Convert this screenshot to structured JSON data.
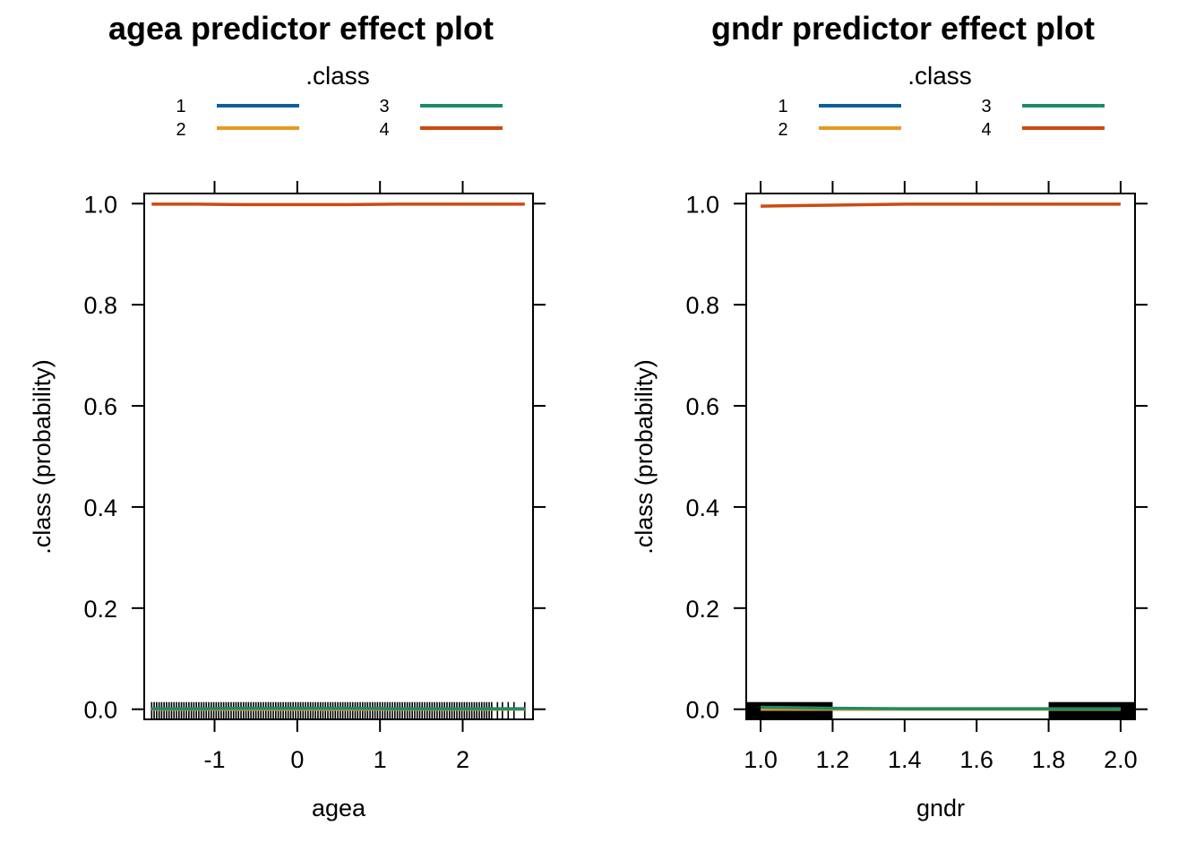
{
  "colors": {
    "class_1": "#0d5e9e",
    "class_2": "#e69a1f",
    "class_3": "#1f8a6a",
    "class_4": "#cc4a10",
    "axis": "#000000",
    "background": "#ffffff"
  },
  "chart_data": [
    {
      "type": "line",
      "title": "agea predictor effect plot",
      "legend_title": ".class",
      "legend_placement": "top",
      "xlabel": "agea",
      "ylabel": ".class (probability)",
      "xlim": [
        -1.85,
        2.85
      ],
      "ylim": [
        -0.02,
        1.02
      ],
      "x_ticks": [
        -1,
        0,
        1,
        2
      ],
      "x_tick_labels": [
        "-1",
        "0",
        "1",
        "2"
      ],
      "y_ticks": [
        0,
        0.2,
        0.4,
        0.6,
        0.8,
        1
      ],
      "y_tick_labels": [
        "0.0",
        "0.2",
        "0.4",
        "0.6",
        "0.8",
        "1.0"
      ],
      "grid": false,
      "rug": {
        "side": "bottom",
        "x": [
          -1.76,
          -1.73,
          -1.7,
          -1.67,
          -1.64,
          -1.61,
          -1.58,
          -1.55,
          -1.52,
          -1.49,
          -1.46,
          -1.43,
          -1.4,
          -1.37,
          -1.34,
          -1.31,
          -1.28,
          -1.25,
          -1.22,
          -1.19,
          -1.16,
          -1.13,
          -1.1,
          -1.07,
          -1.04,
          -1.01,
          -0.98,
          -0.95,
          -0.92,
          -0.89,
          -0.86,
          -0.83,
          -0.8,
          -0.77,
          -0.74,
          -0.71,
          -0.68,
          -0.65,
          -0.62,
          -0.59,
          -0.56,
          -0.53,
          -0.5,
          -0.47,
          -0.44,
          -0.41,
          -0.38,
          -0.35,
          -0.32,
          -0.29,
          -0.26,
          -0.23,
          -0.2,
          -0.17,
          -0.14,
          -0.11,
          -0.08,
          -0.05,
          -0.02,
          0.01,
          0.04,
          0.07,
          0.1,
          0.13,
          0.16,
          0.19,
          0.22,
          0.25,
          0.28,
          0.31,
          0.34,
          0.37,
          0.4,
          0.43,
          0.46,
          0.49,
          0.52,
          0.55,
          0.58,
          0.61,
          0.64,
          0.67,
          0.7,
          0.73,
          0.76,
          0.79,
          0.82,
          0.85,
          0.88,
          0.91,
          0.94,
          0.97,
          1.0,
          1.03,
          1.06,
          1.09,
          1.12,
          1.15,
          1.18,
          1.21,
          1.24,
          1.27,
          1.3,
          1.33,
          1.36,
          1.39,
          1.42,
          1.45,
          1.48,
          1.51,
          1.54,
          1.57,
          1.6,
          1.63,
          1.66,
          1.69,
          1.72,
          1.75,
          1.78,
          1.81,
          1.84,
          1.87,
          1.9,
          1.93,
          1.96,
          1.99,
          2.02,
          2.05,
          2.08,
          2.11,
          2.14,
          2.17,
          2.2,
          2.23,
          2.26,
          2.29,
          2.32,
          2.35,
          2.42,
          2.48,
          2.55,
          2.62,
          2.75
        ]
      },
      "x": [
        -1.76,
        -1.2,
        -0.6,
        0,
        0.6,
        1.2,
        1.8,
        2.4,
        2.75
      ],
      "series": [
        {
          "name": "1",
          "color_key": "class_1",
          "values": [
            0,
            0,
            0,
            0,
            0,
            0,
            0,
            0,
            0
          ]
        },
        {
          "name": "2",
          "color_key": "class_2",
          "values": [
            0,
            0,
            0,
            0,
            0,
            0,
            0,
            0,
            0
          ]
        },
        {
          "name": "3",
          "color_key": "class_3",
          "values": [
            0.001,
            0.001,
            0.002,
            0.002,
            0.002,
            0.001,
            0.001,
            0.001,
            0.001
          ]
        },
        {
          "name": "4",
          "color_key": "class_4",
          "values": [
            0.999,
            0.999,
            0.998,
            0.998,
            0.998,
            0.999,
            0.999,
            0.999,
            0.999
          ]
        }
      ]
    },
    {
      "type": "line",
      "title": "gndr predictor effect plot",
      "legend_title": ".class",
      "legend_placement": "top",
      "xlabel": "gndr",
      "ylabel": ".class (probability)",
      "xlim": [
        0.96,
        2.04
      ],
      "ylim": [
        -0.02,
        1.02
      ],
      "x_ticks": [
        1.0,
        1.2,
        1.4,
        1.6,
        1.8,
        2.0
      ],
      "x_tick_labels": [
        "1.0",
        "1.2",
        "1.4",
        "1.6",
        "1.8",
        "2.0"
      ],
      "y_ticks": [
        0,
        0.2,
        0.4,
        0.6,
        0.8,
        1
      ],
      "y_tick_labels": [
        "0.0",
        "0.2",
        "0.4",
        "0.6",
        "0.8",
        "1.0"
      ],
      "grid": false,
      "rug_blocks": [
        {
          "from": 0.96,
          "to": 1.2
        },
        {
          "from": 1.8,
          "to": 2.04
        }
      ],
      "x": [
        1.0,
        1.2,
        1.4,
        1.6,
        1.8,
        2.0
      ],
      "series": [
        {
          "name": "1",
          "color_key": "class_1",
          "values": [
            0,
            0,
            0,
            0,
            0,
            0
          ]
        },
        {
          "name": "2",
          "color_key": "class_2",
          "values": [
            0,
            0,
            0,
            0,
            0,
            0
          ]
        },
        {
          "name": "3",
          "color_key": "class_3",
          "values": [
            0.004,
            0.002,
            0.001,
            0.001,
            0.001,
            0.001
          ]
        },
        {
          "name": "4",
          "color_key": "class_4",
          "values": [
            0.995,
            0.997,
            0.999,
            0.999,
            0.999,
            0.999
          ]
        }
      ]
    }
  ]
}
